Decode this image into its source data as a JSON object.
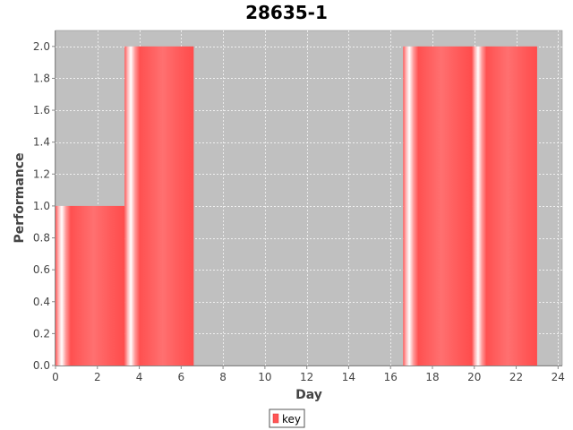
{
  "chart_data": {
    "type": "bar",
    "title": "28635-1",
    "xlabel": "Day",
    "ylabel": "Performance",
    "xlim": [
      0,
      24.2
    ],
    "ylim": [
      0,
      2.1
    ],
    "xticks": [
      0,
      2,
      4,
      6,
      8,
      10,
      12,
      14,
      16,
      18,
      20,
      22,
      24
    ],
    "yticks": [
      0.0,
      0.2,
      0.4,
      0.6,
      0.8,
      1.0,
      1.2,
      1.4,
      1.6,
      1.8,
      2.0
    ],
    "grid": true,
    "legend_position": "bottom",
    "series": [
      {
        "name": "key",
        "color": "#ff5555",
        "bars": [
          {
            "x0": 0.0,
            "x1": 3.3,
            "value": 1.0
          },
          {
            "x0": 3.3,
            "x1": 6.6,
            "value": 2.0
          },
          {
            "x0": 16.6,
            "x1": 19.9,
            "value": 2.0
          },
          {
            "x0": 19.9,
            "x1": 23.0,
            "value": 2.0
          }
        ]
      }
    ]
  }
}
